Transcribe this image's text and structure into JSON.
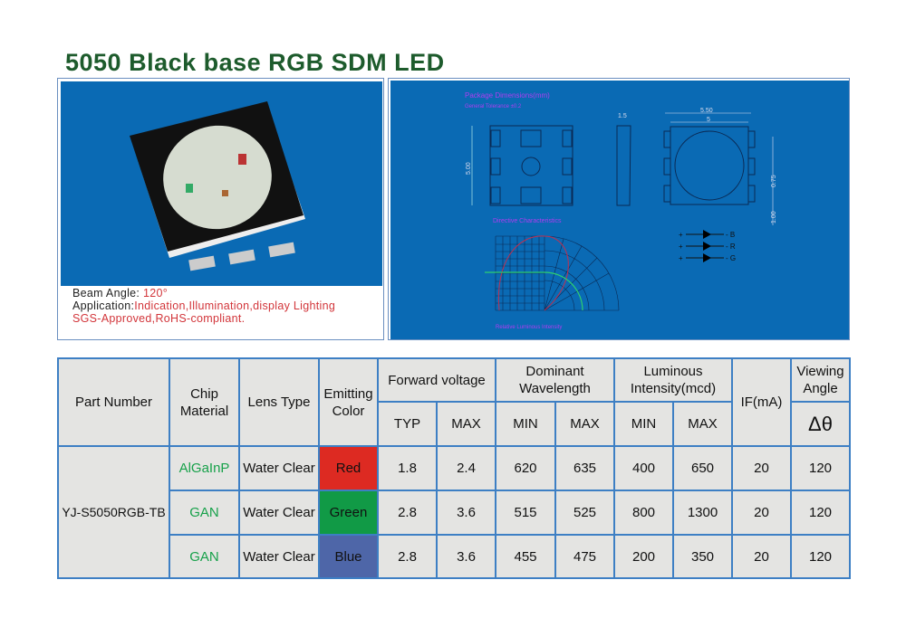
{
  "title": "5050 Black base RGB SDM LED",
  "photo_caption": {
    "beam_label": "Beam Angle: ",
    "beam_value": "120°",
    "application_label": "Application:",
    "application_value": "Indication,Illumination,display Lighting",
    "approval": "SGS-Approved,RoHS-compliant."
  },
  "drawing": {
    "pkg_title": "Package Dimensions(mm)",
    "tolerance": "General Tolerance ±0.2",
    "dim_height": "5.00",
    "dim_thickness": "1.5",
    "dim_outer": "5.50",
    "dim_inner": "5",
    "dim_pitch": "0.75",
    "dim_pad": "1.00",
    "directive_title": "Directive Characteristics",
    "directive_xlabel": "Relative Luminous Intensity",
    "pins": [
      {
        "plus": "+",
        "minus": "- B"
      },
      {
        "plus": "+",
        "minus": "- R"
      },
      {
        "plus": "+",
        "minus": "- G"
      }
    ]
  },
  "colors": {
    "accent": "#3d7fc4",
    "panel_blue": "#0a6ab4",
    "red": "#dd2a22",
    "green": "#119a46",
    "blue": "#4e66a8"
  },
  "table": {
    "headers": {
      "part": "Part Number",
      "chip": "Chip Material",
      "lens": "Lens Type",
      "emit": "Emitting Color",
      "fv": "Forward voltage",
      "dw": "Dominant Wavelength",
      "li": "Luminous Intensity(mcd)",
      "if": "IF(mA)",
      "va": "Viewing Angle",
      "typ": "TYP",
      "max": "MAX",
      "min": "MIN",
      "angle_symbol": "Δθ"
    },
    "part_number": "YJ-S5050RGB-TB",
    "rows": [
      {
        "chip": "AlGaInP",
        "lens": "Water Clear",
        "color": "Red",
        "fv_typ": "1.8",
        "fv_max": "2.4",
        "wl_min": "620",
        "wl_max": "635",
        "li_min": "400",
        "li_max": "650",
        "if": "20",
        "angle": "120"
      },
      {
        "chip": "GAN",
        "lens": "Water Clear",
        "color": "Green",
        "fv_typ": "2.8",
        "fv_max": "3.6",
        "wl_min": "515",
        "wl_max": "525",
        "li_min": "800",
        "li_max": "1300",
        "if": "20",
        "angle": "120"
      },
      {
        "chip": "GAN",
        "lens": "Water Clear",
        "color": "Blue",
        "fv_typ": "2.8",
        "fv_max": "3.6",
        "wl_min": "455",
        "wl_max": "475",
        "li_min": "200",
        "li_max": "350",
        "if": "20",
        "angle": "120"
      }
    ]
  }
}
